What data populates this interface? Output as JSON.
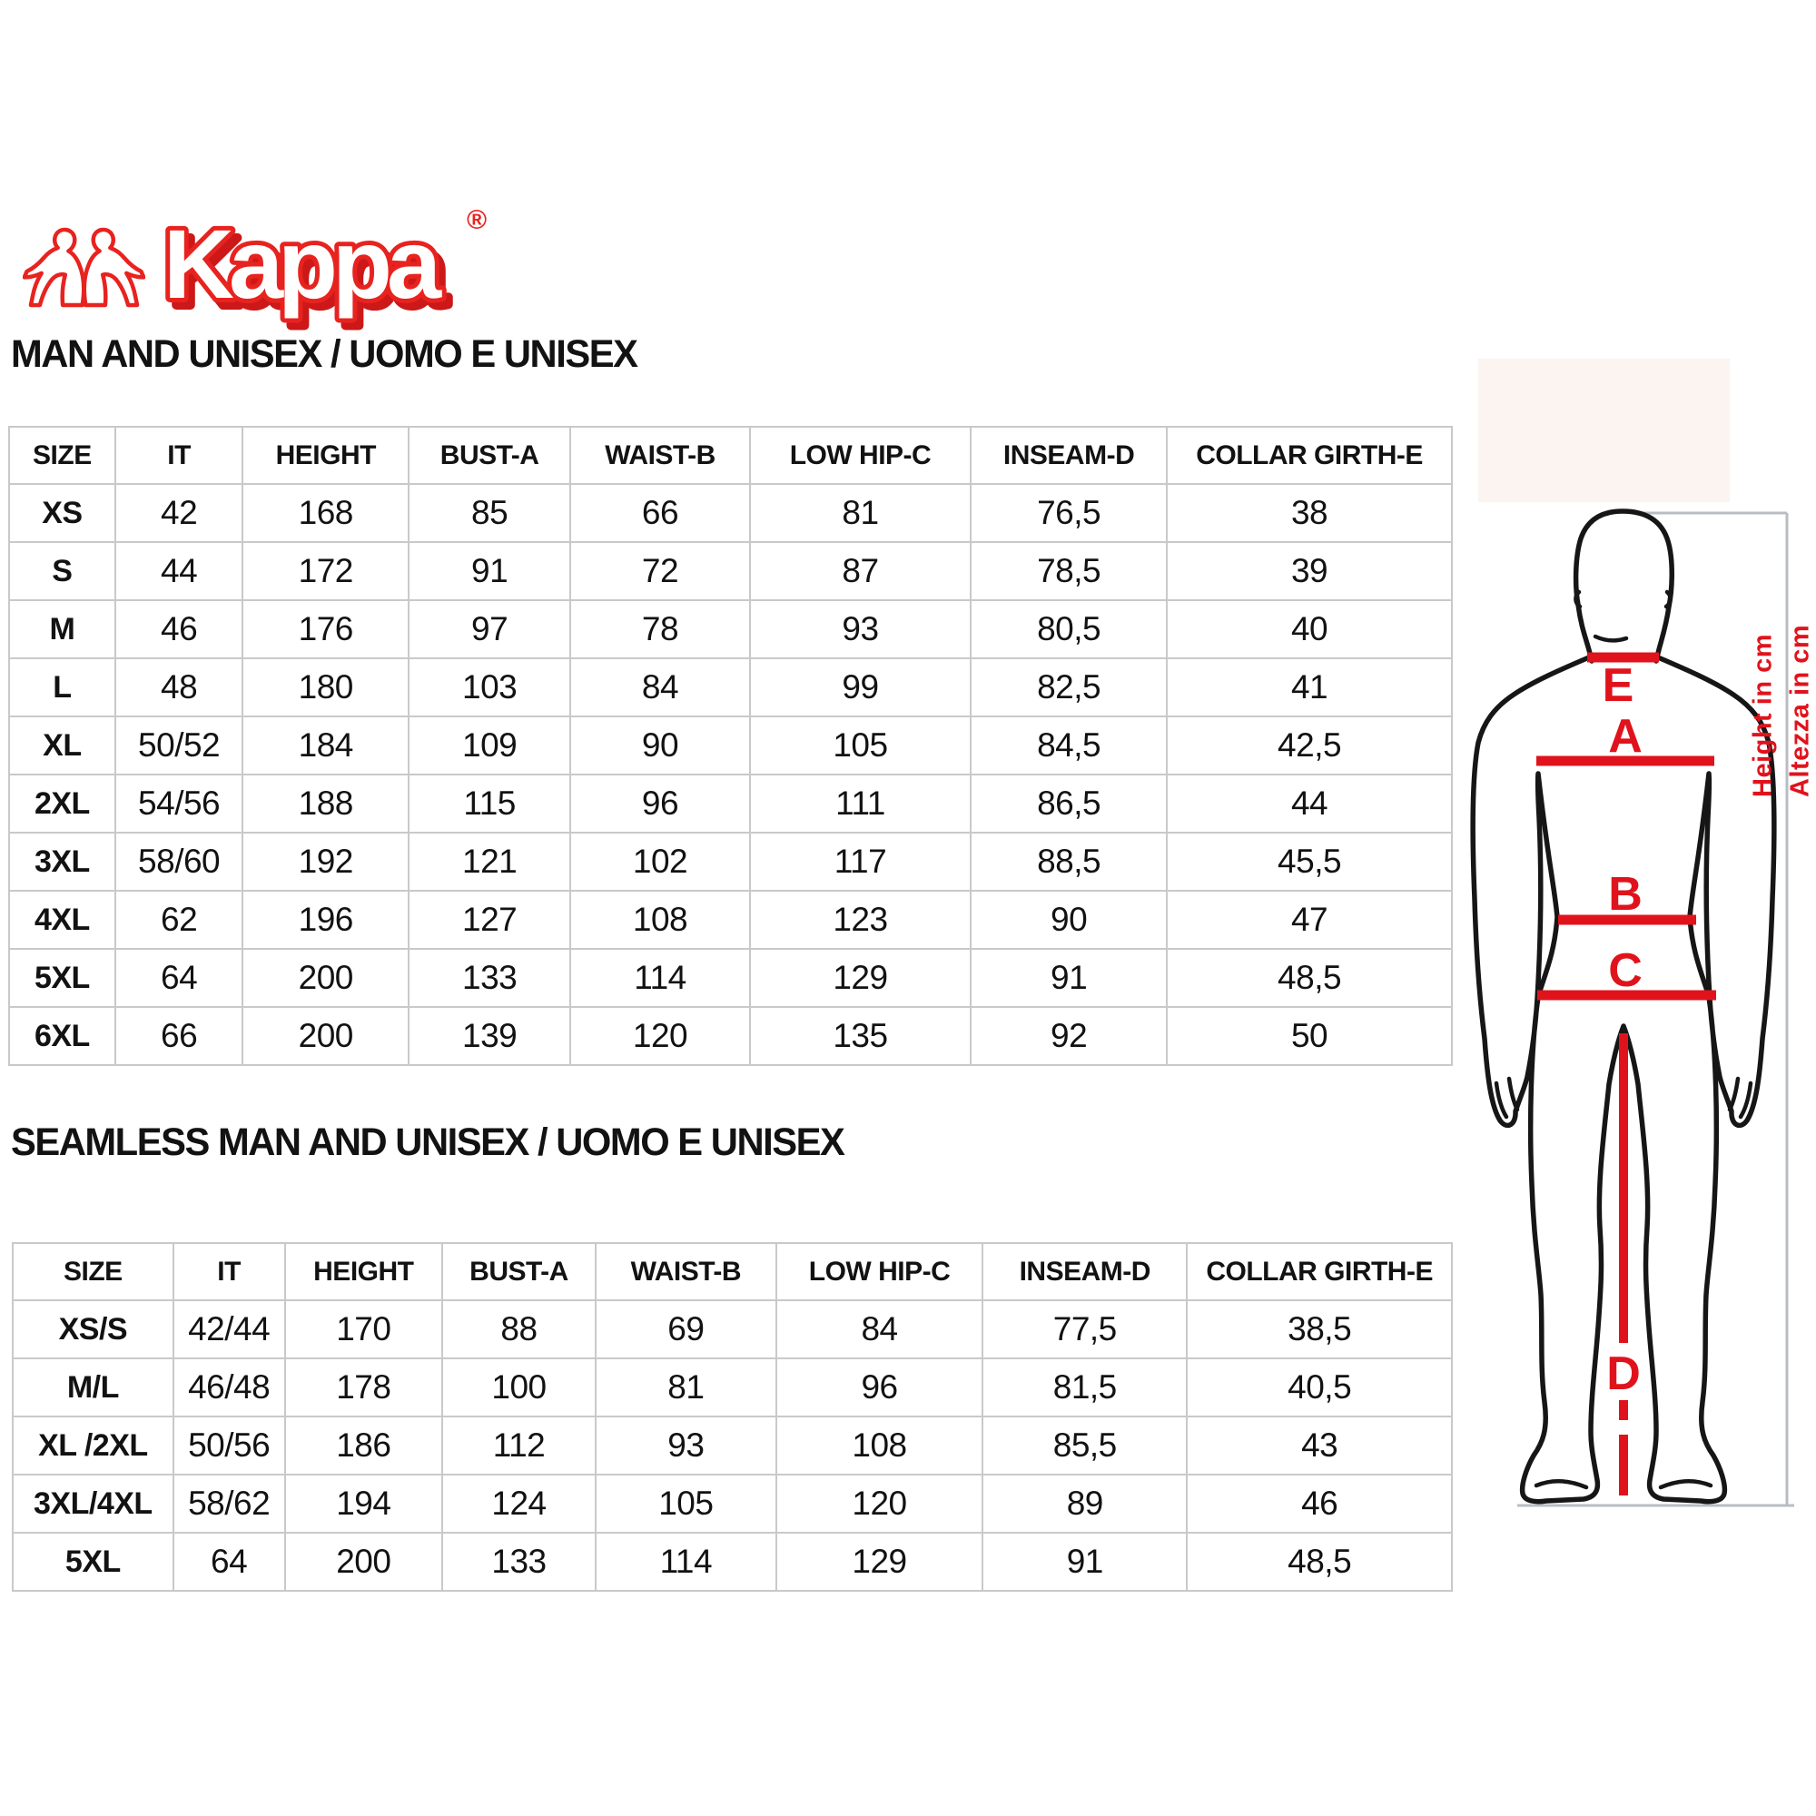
{
  "logo": {
    "brand": "Kappa",
    "registered": "®",
    "icon": "kappa-omini-logo"
  },
  "colors": {
    "accent_red": "#e0131c",
    "logo_red": "#e8231f",
    "table_border": "#c9c9c9",
    "outline_black": "#161616",
    "frame_gray": "#b9bdc3"
  },
  "section1": {
    "title": "MAN AND UNISEX / UOMO E UNISEX",
    "table": {
      "headers": [
        "SIZE",
        "IT",
        "HEIGHT",
        "BUST-A",
        "WAIST-B",
        "LOW HIP-C",
        "INSEAM-D",
        "COLLAR GIRTH-E"
      ],
      "rows": [
        [
          "XS",
          "42",
          "168",
          "85",
          "66",
          "81",
          "76,5",
          "38"
        ],
        [
          "S",
          "44",
          "172",
          "91",
          "72",
          "87",
          "78,5",
          "39"
        ],
        [
          "M",
          "46",
          "176",
          "97",
          "78",
          "93",
          "80,5",
          "40"
        ],
        [
          "L",
          "48",
          "180",
          "103",
          "84",
          "99",
          "82,5",
          "41"
        ],
        [
          "XL",
          "50/52",
          "184",
          "109",
          "90",
          "105",
          "84,5",
          "42,5"
        ],
        [
          "2XL",
          "54/56",
          "188",
          "115",
          "96",
          "111",
          "86,5",
          "44"
        ],
        [
          "3XL",
          "58/60",
          "192",
          "121",
          "102",
          "117",
          "88,5",
          "45,5"
        ],
        [
          "4XL",
          "62",
          "196",
          "127",
          "108",
          "123",
          "90",
          "47"
        ],
        [
          "5XL",
          "64",
          "200",
          "133",
          "114",
          "129",
          "91",
          "48,5"
        ],
        [
          "6XL",
          "66",
          "200",
          "139",
          "120",
          "135",
          "92",
          "50"
        ]
      ]
    }
  },
  "section2": {
    "title": "SEAMLESS MAN AND UNISEX / UOMO E UNISEX",
    "table": {
      "headers": [
        "SIZE",
        "IT",
        "HEIGHT",
        "BUST-A",
        "WAIST-B",
        "LOW HIP-C",
        "INSEAM-D",
        "COLLAR GIRTH-E"
      ],
      "rows": [
        [
          "XS/S",
          "42/44",
          "170",
          "88",
          "69",
          "84",
          "77,5",
          "38,5"
        ],
        [
          "M/L",
          "46/48",
          "178",
          "100",
          "81",
          "96",
          "81,5",
          "40,5"
        ],
        [
          "XL /2XL",
          "50/56",
          "186",
          "112",
          "93",
          "108",
          "85,5",
          "43"
        ],
        [
          "3XL/4XL",
          "58/62",
          "194",
          "124",
          "105",
          "120",
          "89",
          "46"
        ],
        [
          "5XL",
          "64",
          "200",
          "133",
          "114",
          "129",
          "91",
          "48,5"
        ]
      ]
    }
  },
  "figure": {
    "labels": {
      "collar": "E",
      "bust": "A",
      "waist": "B",
      "low_hip": "C",
      "inseam": "D"
    },
    "notes": {
      "en": "Height in cm",
      "it": "Altezza in cm"
    }
  }
}
